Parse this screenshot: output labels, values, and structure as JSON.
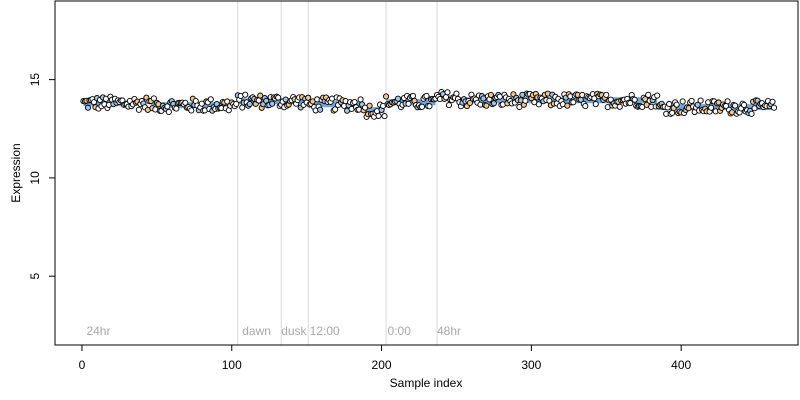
{
  "chart_data": {
    "type": "scatter",
    "title": "",
    "xlabel": "Sample index",
    "ylabel": "Expression",
    "xlim": [
      -18,
      478
    ],
    "ylim": [
      1.5,
      19
    ],
    "x_ticks": [
      0,
      100,
      200,
      300,
      400
    ],
    "y_ticks": [
      5,
      10,
      15
    ],
    "grid": false,
    "marker_edge_color": "#000000",
    "fit_line_color": "#6fa8dc",
    "vertical_line_color": "#d9d9d9",
    "annotation_color": "#a9a9a9",
    "vlines": [
      104,
      133,
      151,
      203,
      237
    ],
    "annotations": [
      {
        "x": 3,
        "y": 2,
        "text": "24hr"
      },
      {
        "x": 107,
        "y": 2,
        "text": "dawn"
      },
      {
        "x": 133,
        "y": 2,
        "text": "dusk"
      },
      {
        "x": 152,
        "y": 2,
        "text": "12:00"
      },
      {
        "x": 204,
        "y": 2,
        "text": "0:00"
      },
      {
        "x": 237,
        "y": 2,
        "text": "48hr"
      }
    ],
    "fit_segments": [
      {
        "x": [
          1,
          30
        ],
        "y": 13.8
      },
      {
        "x": 30,
        "y": 13.4
      },
      {
        "x": [
          46,
          103
        ],
        "y": 13.7
      },
      {
        "x": [
          104,
          150
        ],
        "y": 13.9
      },
      {
        "x": [
          151,
          188
        ],
        "y": 13.75
      },
      {
        "x": [
          188,
          202
        ],
        "y": 13.45
      },
      {
        "x": [
          203,
          236
        ],
        "y": 13.85
      },
      {
        "x": [
          237,
          250
        ],
        "y": 14.05
      },
      {
        "x": [
          250,
          384
        ],
        "y": 13.95
      },
      {
        "x": [
          384,
          462
        ],
        "y": 13.6
      }
    ],
    "series": [
      {
        "name": "",
        "n_points": 462,
        "x_start": 1,
        "x_step": 1,
        "y_range": [
          13.1,
          14.5
        ],
        "y_mean": 13.8,
        "fill_colors": [
          "#ffffff",
          "#ffffff",
          "#ffffff",
          "#f5c48a",
          "#9fc5e8"
        ]
      }
    ]
  }
}
